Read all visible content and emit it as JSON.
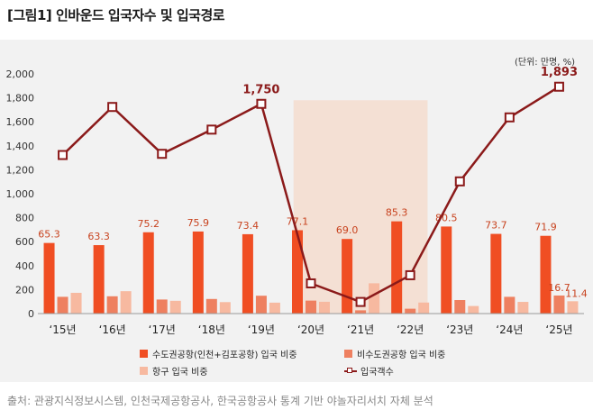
{
  "title": "[그림1] 인바운드 입국자수 및 입국경로",
  "unit_note": "(단위: 만명, %)",
  "source": "출처: 관광지식정보시스템, 인천국제공항공사, 한국공항공사 통계 기반 야놀자리서치 자체 분석",
  "chart_data": {
    "type": "bar",
    "categories": [
      "‘15년",
      "‘16년",
      "‘17년",
      "‘18년",
      "‘19년",
      "‘20년",
      "‘21년",
      "‘22년",
      "‘23년",
      "‘24년",
      "‘25년"
    ],
    "y_ticks": [
      "0",
      "200",
      "400",
      "600",
      "800",
      "1,000",
      "1,200",
      "1,400",
      "1,600",
      "1,800",
      "2,000"
    ],
    "ylim": [
      0,
      2000
    ],
    "grid": false,
    "highlight_range": [
      "‘20년",
      "‘22년"
    ],
    "series": [
      {
        "name": "수도권공항(인천+김포공항) 입국 비중",
        "type": "bar",
        "color": "#f04e23",
        "values": [
          65.3,
          63.3,
          75.2,
          75.9,
          73.4,
          77.1,
          69.0,
          85.3,
          80.5,
          73.7,
          71.9
        ]
      },
      {
        "name": "비수도권공항 입국 비중",
        "type": "bar",
        "color": "#ee8060",
        "values": [
          15.5,
          16.0,
          13.0,
          13.5,
          16.5,
          12.0,
          3.0,
          4.5,
          12.5,
          15.5,
          16.7
        ]
      },
      {
        "name": "항구 입국 비중",
        "type": "bar",
        "color": "#f7b9a0",
        "values": [
          19.2,
          20.7,
          11.8,
          10.6,
          10.1,
          10.9,
          28.0,
          10.2,
          7.0,
          10.8,
          11.4
        ]
      },
      {
        "name": "입국객수",
        "type": "line",
        "color": "#8b1a1a",
        "values": [
          1323,
          1724,
          1333,
          1535,
          1750,
          252,
          97,
          320,
          1103,
          1637,
          1893
        ]
      }
    ],
    "bar_labels": [
      "65.3",
      "63.3",
      "75.2",
      "75.9",
      "73.4",
      "77.1",
      "69.0",
      "85.3",
      "80.5",
      "73.7",
      "71.9"
    ],
    "extra_bar_labels": [
      {
        "category_index": 10,
        "series_index": 1,
        "text": "16.7"
      },
      {
        "category_index": 10,
        "series_index": 2,
        "text": "11.4"
      }
    ],
    "line_labels": [
      {
        "index": 4,
        "text": "1,750"
      },
      {
        "index": 10,
        "text": "1,893"
      }
    ]
  }
}
